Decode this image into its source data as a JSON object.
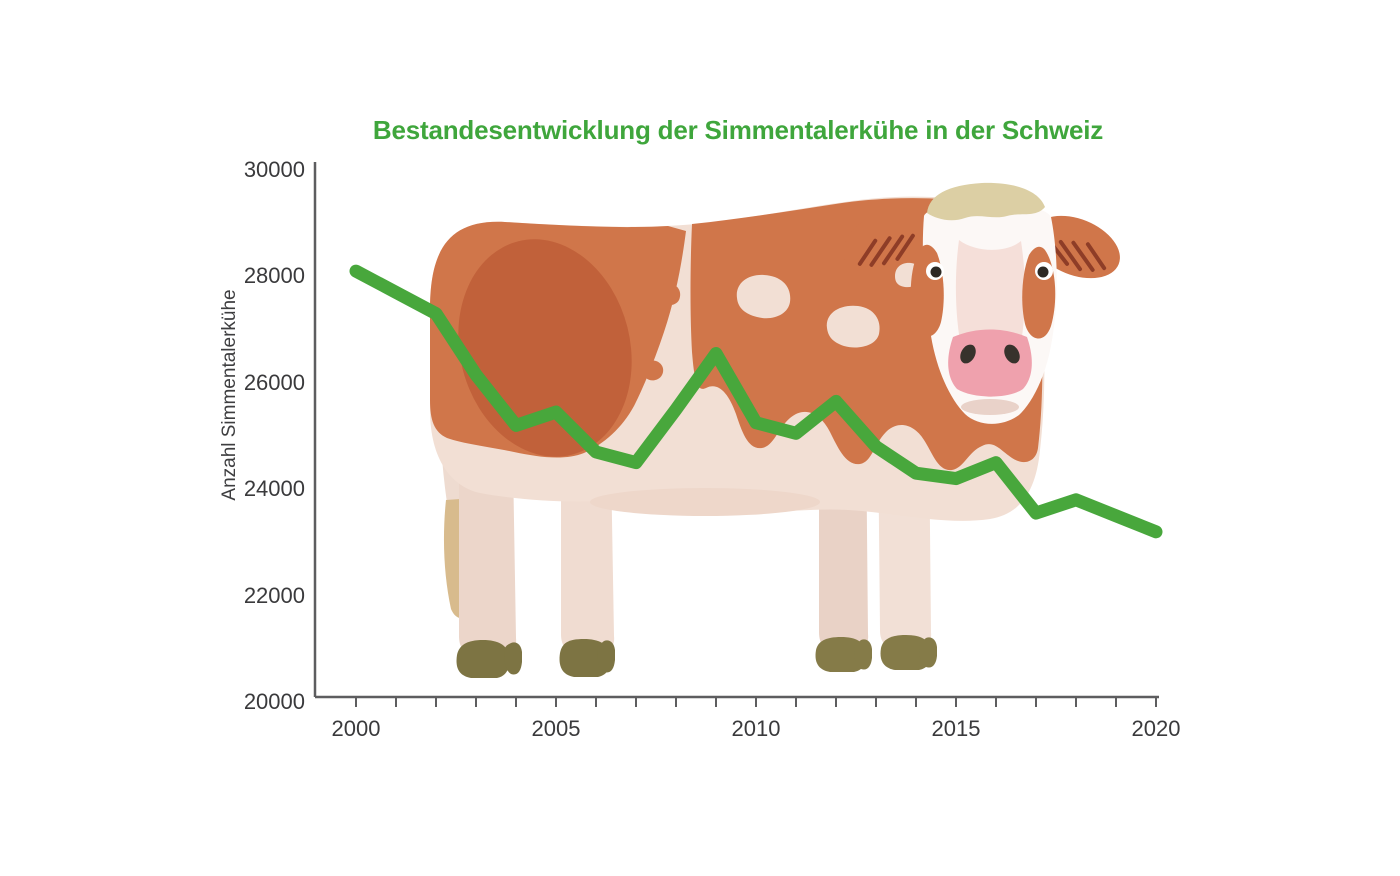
{
  "title": {
    "text": "Bestandesentwicklung der Simmentalerkühe in der Schweiz",
    "color": "#3fa63c"
  },
  "chart_data": {
    "type": "line",
    "title": "Bestandesentwicklung der Simmentalerkühe in der Schweiz",
    "xlabel": "",
    "ylabel": "Anzahl Simmentalerkühe",
    "x": [
      2000,
      2001,
      2002,
      2003,
      2004,
      2005,
      2006,
      2007,
      2008,
      2009,
      2010,
      2011,
      2012,
      2013,
      2014,
      2015,
      2016,
      2017,
      2018,
      2019,
      2020
    ],
    "series": [
      {
        "name": "Anzahl Simmentalerkühe",
        "color": "#48a73c",
        "line_width": 13,
        "values": [
          28100,
          27700,
          27300,
          26150,
          25200,
          25450,
          24700,
          24500,
          25500,
          26550,
          25250,
          25050,
          25650,
          24800,
          24300,
          24200,
          24500,
          23550,
          23800,
          23500,
          23200
        ]
      }
    ],
    "ylim": [
      20000,
      30000
    ],
    "xlim": [
      1999,
      2020
    ],
    "y_ticks": [
      20000,
      22000,
      24000,
      26000,
      28000,
      30000
    ],
    "x_tick_labels": [
      2000,
      2005,
      2010,
      2015,
      2020
    ],
    "grid": false,
    "legend": "none",
    "axis_color": "#5d5d5f",
    "annotation": "flat-design Simmental cow illustration behind the line"
  },
  "illustration": {
    "name": "simmental-cow",
    "palette": {
      "body_cream": "#f2dfd4",
      "patch_orange": "#d0764a",
      "patch_orange_dark": "#c1613a",
      "hoof_olive": "#7d7443",
      "tail_tuft_tan": "#d8bb8d",
      "forehead_tuft_beige": "#dccfa4",
      "muzzle_pink": "#efa1ad",
      "ear_streak_red": "#8e3d27"
    }
  }
}
